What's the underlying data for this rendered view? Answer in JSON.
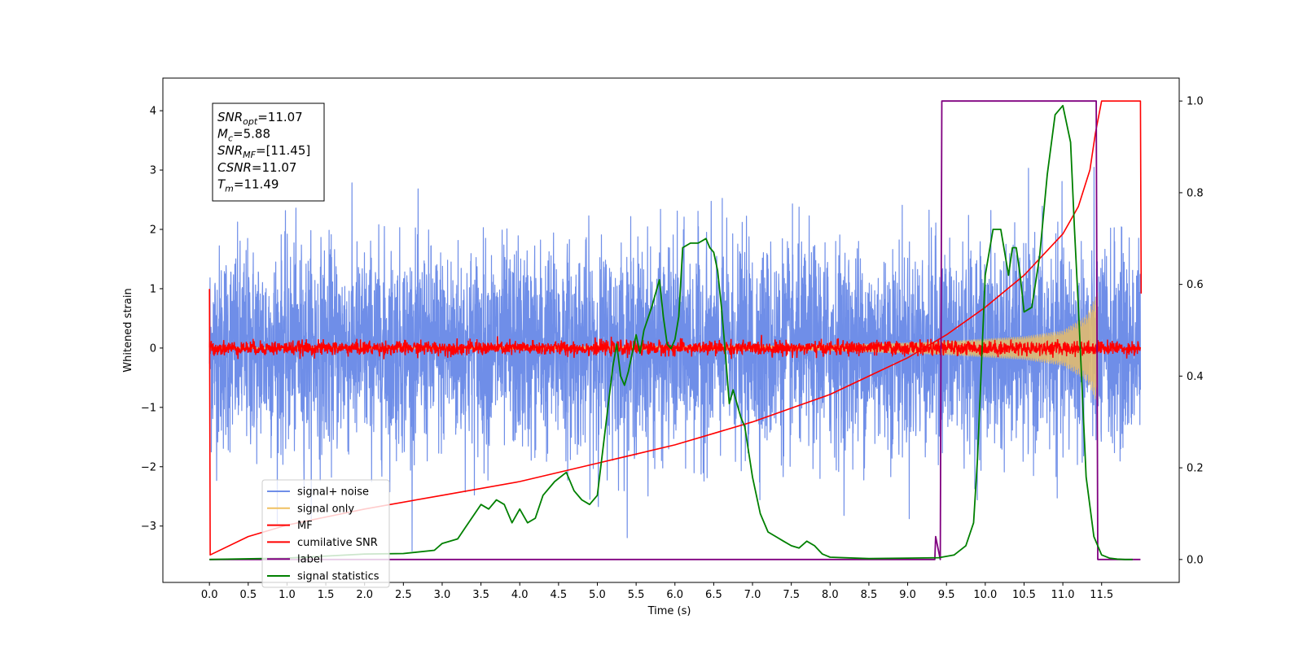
{
  "chart_data": {
    "type": "line",
    "title": "",
    "xlabel": "Time (s)",
    "ylabel": "Whitened strain",
    "y2label": "",
    "xlim": [
      -0.6,
      12.5
    ],
    "ylim": [
      -3.95,
      4.55
    ],
    "y2lim": [
      -0.05,
      1.05
    ],
    "x_ticks": [
      0.0,
      0.5,
      1.0,
      1.5,
      2.0,
      2.5,
      3.0,
      3.5,
      4.0,
      4.5,
      5.0,
      5.5,
      6.0,
      6.5,
      7.0,
      7.5,
      8.0,
      8.5,
      9.0,
      9.5,
      10.0,
      10.5,
      11.0,
      11.5
    ],
    "x_tick_labels": [
      "0.0",
      "0.5",
      "1.0",
      "1.5",
      "2.0",
      "2.5",
      "3.0",
      "3.5",
      "4.0",
      "4.5",
      "5.0",
      "5.5",
      "6.0",
      "6.5",
      "7.0",
      "7.5",
      "8.0",
      "8.5",
      "9.0",
      "9.5",
      "10.0",
      "10.5",
      "11.0",
      "11.5"
    ],
    "y_ticks": [
      -3,
      -2,
      -1,
      0,
      1,
      2,
      3,
      4
    ],
    "y_tick_labels": [
      "−3",
      "−2",
      "−1",
      "0",
      "1",
      "2",
      "3",
      "4"
    ],
    "y2_ticks": [
      0.0,
      0.2,
      0.4,
      0.6,
      0.8,
      1.0
    ],
    "y2_tick_labels": [
      "0.0",
      "0.2",
      "0.4",
      "0.6",
      "0.8",
      "1.0"
    ],
    "grid": false,
    "legend_position": "bottom-left",
    "series": [
      {
        "name": "signal+ noise",
        "color": "#6f8ee8",
        "axis": "left",
        "style": "noise",
        "x_range": [
          0.0,
          12.0
        ],
        "std": 0.85,
        "peak_abs": 3.6
      },
      {
        "name": "signal only",
        "color": "#f0c060",
        "axis": "left",
        "style": "chirp-envelope",
        "x_range": [
          0.0,
          11.45
        ],
        "envelope_x": [
          0.0,
          8.0,
          9.5,
          10.5,
          11.0,
          11.3,
          11.45
        ],
        "envelope_amp": [
          0.01,
          0.05,
          0.12,
          0.2,
          0.3,
          0.55,
          0.95
        ]
      },
      {
        "name": "MF",
        "color": "#ff0000",
        "axis": "left",
        "style": "noise",
        "x_range": [
          0.0,
          12.0
        ],
        "std": 0.06,
        "peak_abs": 0.22
      },
      {
        "name": "cumilative SNR",
        "color": "#ff0000",
        "axis": "right",
        "x": [
          0.0,
          0.01,
          0.5,
          1.0,
          2.0,
          3.0,
          4.0,
          5.0,
          6.0,
          6.5,
          7.0,
          7.5,
          8.0,
          8.5,
          9.0,
          9.5,
          10.0,
          10.5,
          11.0,
          11.2,
          11.35,
          11.42,
          11.5,
          12.0,
          12.01
        ],
        "y": [
          0.59,
          0.01,
          0.05,
          0.075,
          0.11,
          0.14,
          0.17,
          0.21,
          0.25,
          0.275,
          0.3,
          0.33,
          0.36,
          0.4,
          0.44,
          0.49,
          0.55,
          0.62,
          0.71,
          0.77,
          0.85,
          0.93,
          1.0,
          1.0,
          0.58
        ]
      },
      {
        "name": "label",
        "color": "#800080",
        "axis": "right",
        "x": [
          0.0,
          9.35,
          9.36,
          9.42,
          9.44,
          11.43,
          11.45,
          11.5,
          11.52,
          12.0
        ],
        "y": [
          0.0,
          0.0,
          0.05,
          0.0,
          1.0,
          1.0,
          0.0,
          0.0,
          0.0,
          0.0
        ]
      },
      {
        "name": "signal statistics",
        "color": "#008000",
        "axis": "right",
        "x": [
          0.0,
          1.0,
          2.0,
          2.5,
          2.9,
          3.0,
          3.2,
          3.3,
          3.5,
          3.6,
          3.7,
          3.8,
          3.9,
          4.0,
          4.1,
          4.2,
          4.3,
          4.45,
          4.6,
          4.7,
          4.8,
          4.9,
          5.0,
          5.1,
          5.2,
          5.25,
          5.3,
          5.35,
          5.4,
          5.5,
          5.55,
          5.6,
          5.7,
          5.8,
          5.85,
          5.9,
          5.95,
          6.0,
          6.05,
          6.1,
          6.2,
          6.3,
          6.4,
          6.45,
          6.5,
          6.55,
          6.6,
          6.65,
          6.7,
          6.75,
          6.85,
          6.9,
          7.0,
          7.1,
          7.2,
          7.3,
          7.4,
          7.5,
          7.6,
          7.7,
          7.8,
          7.9,
          8.0,
          8.5,
          9.0,
          9.4,
          9.6,
          9.75,
          9.85,
          9.9,
          10.0,
          10.1,
          10.2,
          10.3,
          10.35,
          10.4,
          10.45,
          10.5,
          10.6,
          10.7,
          10.8,
          10.9,
          11.0,
          11.1,
          11.15,
          11.2,
          11.3,
          11.4,
          11.5,
          11.6,
          11.7,
          11.8,
          11.9
        ],
        "y": [
          0.0,
          0.003,
          0.012,
          0.013,
          0.02,
          0.035,
          0.045,
          0.07,
          0.12,
          0.11,
          0.13,
          0.12,
          0.08,
          0.11,
          0.08,
          0.09,
          0.14,
          0.17,
          0.19,
          0.15,
          0.13,
          0.12,
          0.14,
          0.28,
          0.42,
          0.47,
          0.4,
          0.38,
          0.41,
          0.49,
          0.45,
          0.5,
          0.55,
          0.61,
          0.53,
          0.47,
          0.46,
          0.48,
          0.53,
          0.68,
          0.69,
          0.69,
          0.7,
          0.68,
          0.67,
          0.63,
          0.55,
          0.45,
          0.34,
          0.37,
          0.31,
          0.29,
          0.18,
          0.1,
          0.06,
          0.05,
          0.04,
          0.03,
          0.025,
          0.04,
          0.03,
          0.012,
          0.005,
          0.002,
          0.003,
          0.004,
          0.01,
          0.03,
          0.08,
          0.22,
          0.62,
          0.72,
          0.72,
          0.62,
          0.68,
          0.68,
          0.62,
          0.54,
          0.55,
          0.66,
          0.84,
          0.97,
          0.99,
          0.91,
          0.72,
          0.55,
          0.18,
          0.05,
          0.01,
          0.003,
          0.001,
          0.0,
          0.0
        ]
      }
    ]
  },
  "infobox": {
    "lines": [
      {
        "var": "SNR",
        "sub": "opt",
        "value": "=11.07"
      },
      {
        "var": "M",
        "sub": "c",
        "value": "=5.88"
      },
      {
        "var": "SNR",
        "sub": "MF",
        "value": "=[11.45]"
      },
      {
        "var": "CSNR",
        "sub": "",
        "value": "=11.07"
      },
      {
        "var": "T",
        "sub": "m",
        "value": "=11.49"
      }
    ]
  }
}
